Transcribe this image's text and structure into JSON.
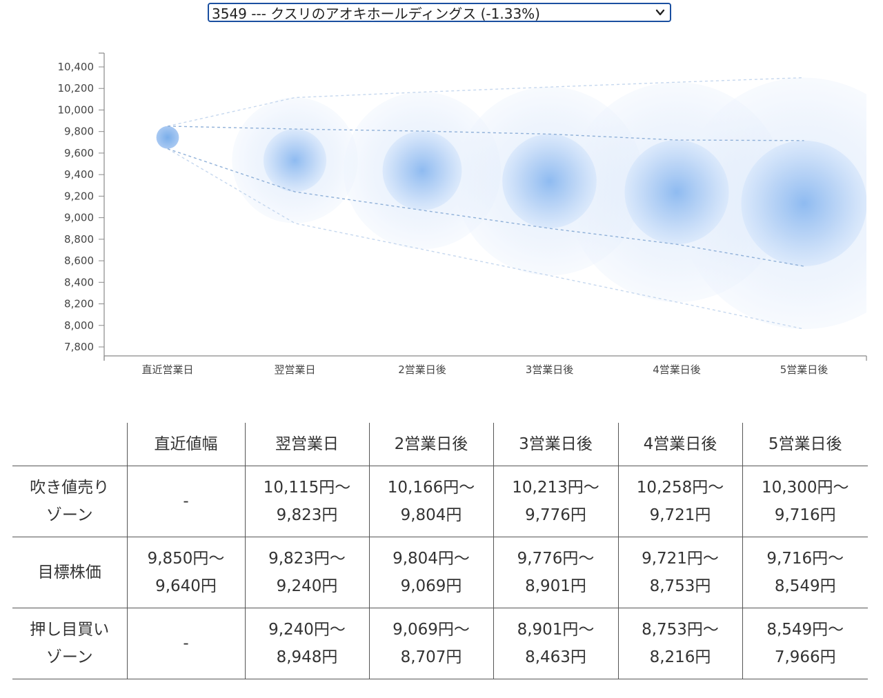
{
  "selector": {
    "value": "3549 --- クスリのアオキホールディングス (-1.33%)",
    "icon": "chevron-down-icon"
  },
  "chart_data": {
    "type": "scatter",
    "title": "",
    "xlabel": "",
    "ylabel": "",
    "categories": [
      "直近営業日",
      "翌営業日",
      "2営業日後",
      "3営業日後",
      "4営業日後",
      "5営業日後"
    ],
    "y_ticks": [
      "10,400",
      "10,200",
      "10,000",
      "9,800",
      "9,600",
      "9,400",
      "9,200",
      "9,000",
      "8,800",
      "8,600",
      "8,400",
      "8,200",
      "8,000",
      "7,800"
    ],
    "ylim": [
      7750,
      10530
    ],
    "grid": false,
    "color": "#6fa3e6",
    "center": [
      9745,
      9532,
      9437,
      9339,
      9237,
      9133
    ],
    "inner_upper": [
      9850,
      9823,
      9804,
      9776,
      9721,
      9716
    ],
    "inner_lower": [
      9640,
      9240,
      9069,
      8901,
      8753,
      8549
    ],
    "outer_upper": [
      9850,
      10115,
      10166,
      10213,
      10258,
      10300
    ],
    "outer_lower": [
      9640,
      8948,
      8707,
      8463,
      8216,
      7966
    ]
  },
  "table": {
    "headers": [
      "直近値幅",
      "翌営業日",
      "2営業日後",
      "3営業日後",
      "4営業日後",
      "5営業日後"
    ],
    "rows": [
      {
        "label": [
          "吹き値売り",
          "ゾーン"
        ],
        "cells": [
          [
            "-"
          ],
          [
            "10,115円〜",
            "9,823円"
          ],
          [
            "10,166円〜",
            "9,804円"
          ],
          [
            "10,213円〜",
            "9,776円"
          ],
          [
            "10,258円〜",
            "9,721円"
          ],
          [
            "10,300円〜",
            "9,716円"
          ]
        ]
      },
      {
        "label": [
          "目標株価"
        ],
        "cells": [
          [
            "9,850円〜",
            "9,640円"
          ],
          [
            "9,823円〜",
            "9,240円"
          ],
          [
            "9,804円〜",
            "9,069円"
          ],
          [
            "9,776円〜",
            "8,901円"
          ],
          [
            "9,721円〜",
            "8,753円"
          ],
          [
            "9,716円〜",
            "8,549円"
          ]
        ]
      },
      {
        "label": [
          "押し目買い",
          "ゾーン"
        ],
        "cells": [
          [
            "-"
          ],
          [
            "9,240円〜",
            "8,948円"
          ],
          [
            "9,069円〜",
            "8,707円"
          ],
          [
            "8,901円〜",
            "8,463円"
          ],
          [
            "8,753円〜",
            "8,216円"
          ],
          [
            "8,549円〜",
            "7,966円"
          ]
        ]
      }
    ]
  }
}
